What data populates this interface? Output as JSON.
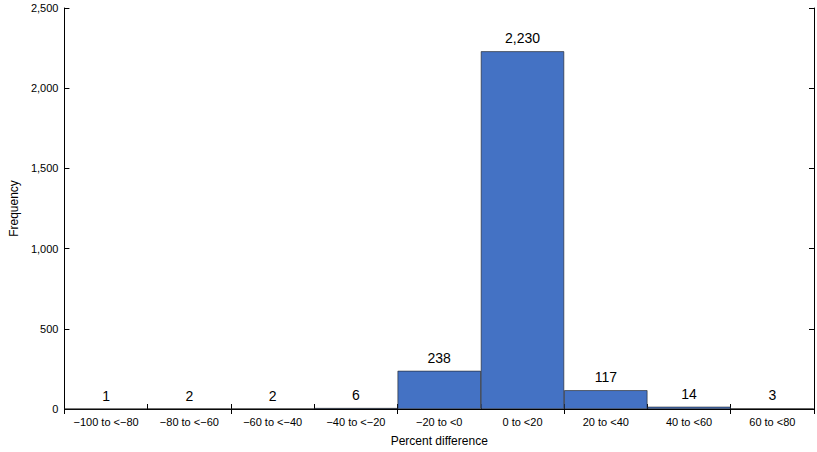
{
  "chart_data": {
    "type": "bar",
    "xlabel": "Percent difference",
    "ylabel": "Frequency",
    "categories": [
      "−100 to <−80",
      "−80 to <−60",
      "−60 to <−40",
      "−40 to <−20",
      "−20 to <0",
      "0 to <20",
      "20 to <40",
      "40 to <60",
      "60 to <80"
    ],
    "values": [
      1,
      2,
      2,
      6,
      238,
      2230,
      117,
      14,
      3
    ],
    "value_labels": [
      "1",
      "2",
      "2",
      "6",
      "238",
      "2,230",
      "117",
      "14",
      "3"
    ],
    "data_labels": true,
    "color": "#4472c4",
    "ylim": [
      0,
      2500
    ],
    "yticks": [
      0,
      500,
      {
        "value": 1000,
        "label": "1,000"
      },
      {
        "value": 1500,
        "label": "1,500"
      },
      {
        "value": 2000,
        "label": "2,000"
      },
      {
        "value": 2500,
        "label": "2,500"
      }
    ],
    "grid": false
  }
}
